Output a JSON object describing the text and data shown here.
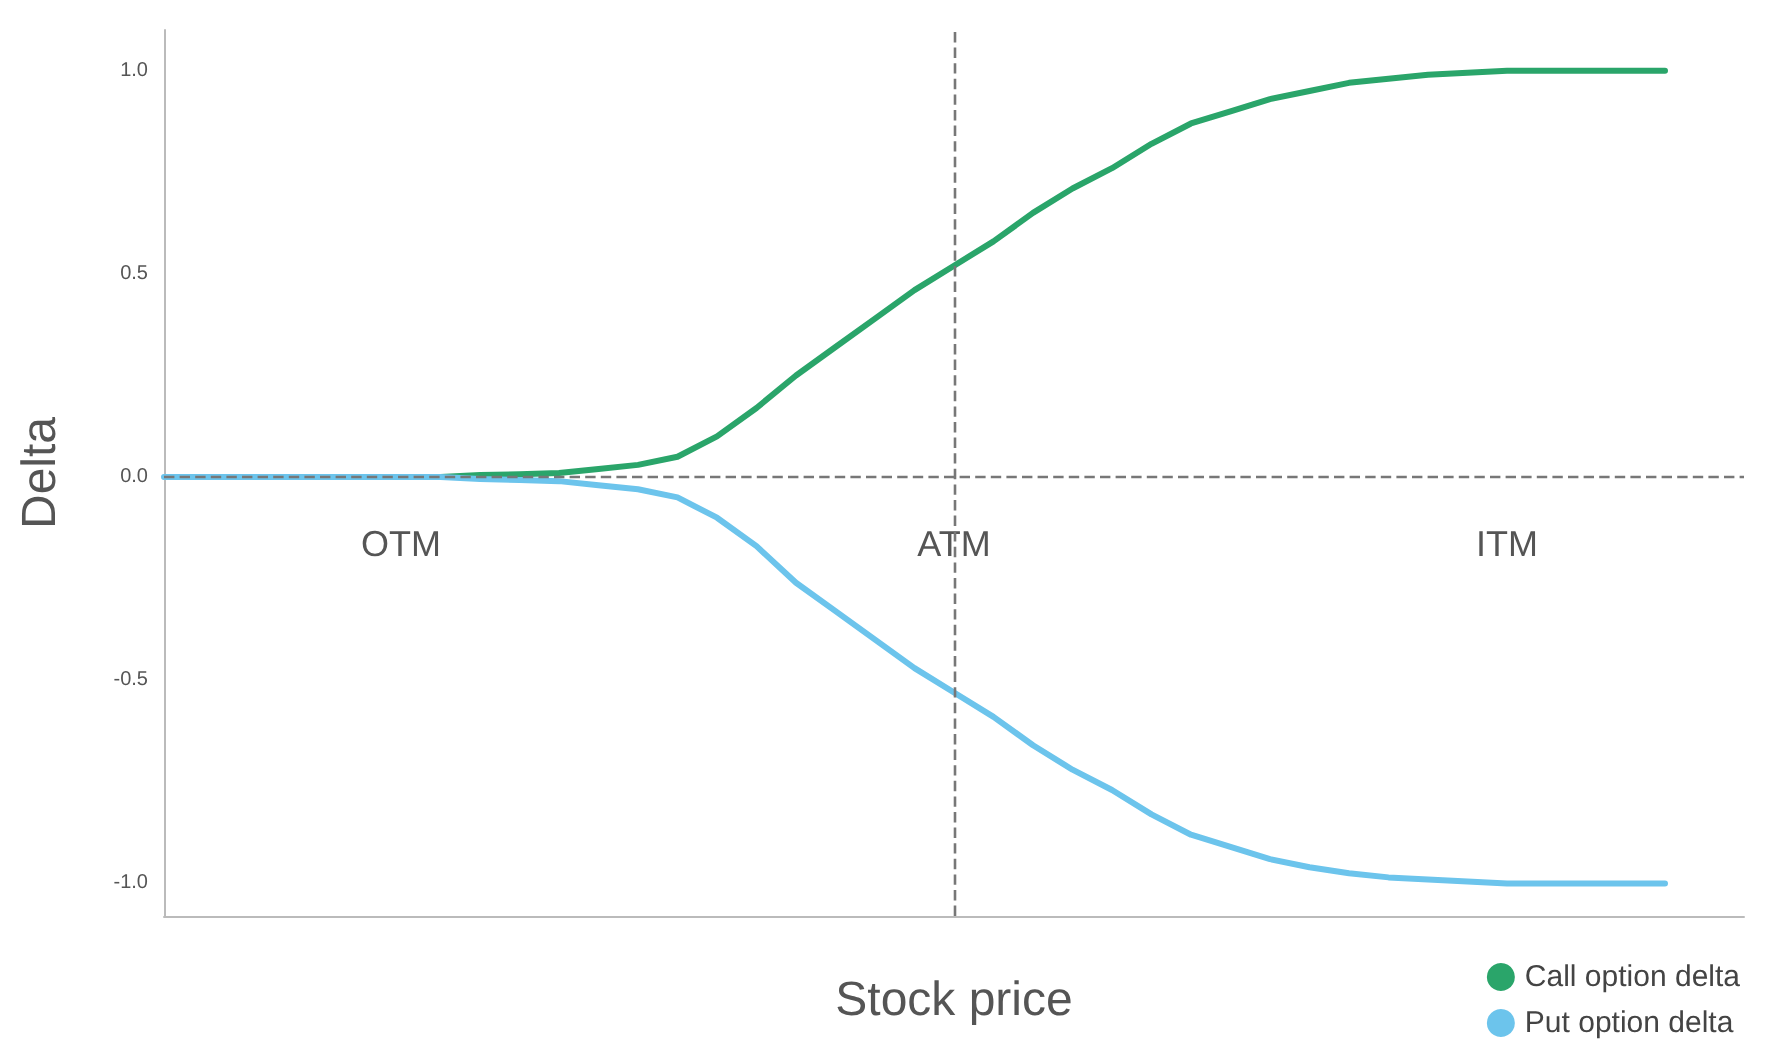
{
  "chart_data": {
    "type": "line",
    "xlabel": "Stock price",
    "ylabel": "Delta",
    "categories": [
      null,
      null,
      null,
      null,
      null,
      null,
      null,
      null,
      null,
      null,
      null,
      null,
      null,
      null,
      null,
      null,
      null,
      null,
      null,
      null,
      null,
      null,
      null,
      null,
      null,
      null,
      null,
      null,
      null,
      null,
      null,
      null,
      null,
      null,
      null,
      null,
      null,
      null,
      null,
      null,
      null
    ],
    "series": [
      {
        "name": "Call option delta",
        "color": "#2aa56a",
        "values": [
          null,
          null,
          null,
          null,
          null,
          null,
          0,
          0,
          0.005,
          0.007,
          0.01,
          0.02,
          0.03,
          0.05,
          0.1,
          0.17,
          0.25,
          0.32,
          0.39,
          0.46,
          0.52,
          0.58,
          0.65,
          0.71,
          0.76,
          0.82,
          0.87,
          0.9,
          0.93,
          0.95,
          0.97,
          0.98,
          0.99,
          0.995,
          1,
          1,
          1,
          1,
          1,
          null,
          null
        ]
      },
      {
        "name": "Put option delta",
        "color": "#6cc4ec",
        "values": [
          0,
          0,
          0,
          0,
          0,
          0,
          0,
          0,
          -0.005,
          -0.007,
          -0.01,
          -0.02,
          -0.03,
          -0.05,
          -0.1,
          -0.17,
          -0.26,
          -0.33,
          -0.4,
          -0.47,
          -0.53,
          -0.59,
          -0.66,
          -0.72,
          -0.77,
          -0.83,
          -0.88,
          -0.91,
          -0.94,
          -0.96,
          -0.975,
          -0.985,
          -0.99,
          -0.995,
          -1,
          -1,
          -1,
          -1,
          -1,
          null,
          null
        ]
      }
    ],
    "ylim": [
      -1.08,
      1.1
    ],
    "yticks": [
      {
        "value": -1,
        "label": "-1.0"
      },
      {
        "value": -0.5,
        "label": "-0.5"
      },
      {
        "value": 0,
        "label": "0.0"
      },
      {
        "value": 0.5,
        "label": "0.5"
      },
      {
        "value": 1,
        "label": "1.0"
      }
    ],
    "tick_labels": "y",
    "ref_lines": [
      {
        "axis": "y",
        "value": 0,
        "color": "#777777",
        "line_style": "dashed"
      }
    ],
    "annotations": [
      "OTM",
      "ATM",
      "ITM"
    ],
    "grid": false,
    "legend": "bottom right",
    "marker": "none",
    "line_style": "solid"
  }
}
